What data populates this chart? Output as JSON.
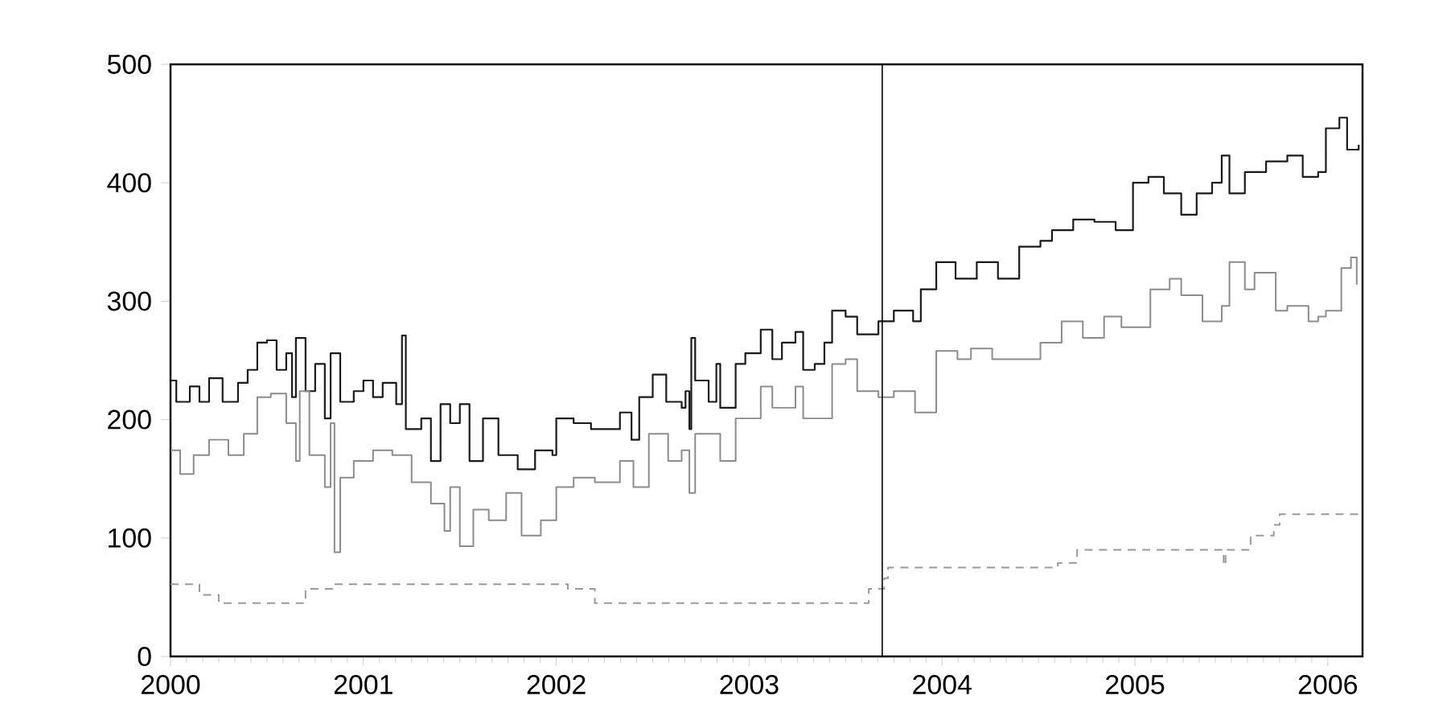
{
  "chart_data": {
    "type": "step",
    "xlim": [
      2000,
      2006.18
    ],
    "xticks": [
      2000,
      2001,
      2002,
      2003,
      2004,
      2005,
      2006
    ],
    "ylim": [
      0,
      500
    ],
    "yticks": [
      0,
      100,
      200,
      300,
      400,
      500
    ],
    "grid": false,
    "marker": "none",
    "ref_lines": [
      {
        "axis": "x",
        "value": 2003.69,
        "color": "#000000"
      }
    ],
    "series": [
      {
        "color": "#1a1a1a",
        "line_style": "solid",
        "x": [
          2000.0,
          2000.03,
          2000.1,
          2000.15,
          2000.2,
          2000.27,
          2000.35,
          2000.4,
          2000.45,
          2000.5,
          2000.55,
          2000.6,
          2000.63,
          2000.65,
          2000.7,
          2000.75,
          2000.8,
          2000.83,
          2000.88,
          2000.95,
          2001.0,
          2001.05,
          2001.1,
          2001.17,
          2001.2,
          2001.22,
          2001.3,
          2001.35,
          2001.4,
          2001.45,
          2001.5,
          2001.55,
          2001.62,
          2001.7,
          2001.78,
          2001.8,
          2001.89,
          2001.98,
          2002.0,
          2002.09,
          2002.18,
          2002.33,
          2002.39,
          2002.43,
          2002.5,
          2002.57,
          2002.65,
          2002.67,
          2002.69,
          2002.7,
          2002.72,
          2002.79,
          2002.83,
          2002.85,
          2002.93,
          2002.98,
          2003.06,
          2003.12,
          2003.17,
          2003.24,
          2003.28,
          2003.34,
          2003.39,
          2003.43,
          2003.5,
          2003.56,
          2003.67,
          2003.75,
          2003.85,
          2003.89,
          2003.97,
          2004.02,
          2004.07,
          2004.18,
          2004.29,
          2004.4,
          2004.51,
          2004.57,
          2004.68,
          2004.79,
          2004.9,
          2004.99,
          2005.07,
          2005.15,
          2005.24,
          2005.32,
          2005.4,
          2005.45,
          2005.49,
          2005.57,
          2005.68,
          2005.79,
          2005.87,
          2005.95,
          2005.99,
          2006.06,
          2006.1,
          2006.16
        ],
        "values": [
          233,
          215,
          228,
          215,
          235,
          215,
          231,
          242,
          265,
          267,
          242,
          256,
          219,
          269,
          224,
          247,
          201,
          256,
          215,
          224,
          233,
          219,
          231,
          213,
          271,
          192,
          201,
          165,
          213,
          197,
          213,
          165,
          201,
          170,
          170,
          158,
          174,
          170,
          201,
          197,
          192,
          206,
          183,
          219,
          238,
          215,
          210,
          224,
          192,
          269,
          233,
          215,
          247,
          210,
          247,
          256,
          276,
          251,
          265,
          274,
          242,
          247,
          265,
          292,
          287,
          272,
          283,
          292,
          283,
          310,
          333,
          333,
          319,
          333,
          319,
          346,
          351,
          360,
          369,
          367,
          360,
          400,
          405,
          391,
          373,
          391,
          400,
          423,
          391,
          409,
          418,
          423,
          405,
          409,
          446,
          455,
          428,
          432
        ]
      },
      {
        "color": "#8c8c8c",
        "line_style": "solid",
        "x": [
          2000.0,
          2000.05,
          2000.12,
          2000.2,
          2000.3,
          2000.38,
          2000.45,
          2000.52,
          2000.6,
          2000.65,
          2000.67,
          2000.72,
          2000.8,
          2000.83,
          2000.85,
          2000.88,
          2000.95,
          2001.05,
          2001.15,
          2001.25,
          2001.35,
          2001.42,
          2001.45,
          2001.5,
          2001.57,
          2001.65,
          2001.74,
          2001.82,
          2001.92,
          2002.0,
          2002.09,
          2002.2,
          2002.33,
          2002.4,
          2002.48,
          2002.58,
          2002.65,
          2002.69,
          2002.72,
          2002.79,
          2002.85,
          2002.93,
          2003.06,
          2003.12,
          2003.24,
          2003.28,
          2003.39,
          2003.43,
          2003.5,
          2003.56,
          2003.67,
          2003.75,
          2003.86,
          2003.97,
          2004.08,
          2004.15,
          2004.26,
          2004.4,
          2004.51,
          2004.62,
          2004.73,
          2004.84,
          2004.93,
          2004.99,
          2005.08,
          2005.18,
          2005.24,
          2005.35,
          2005.45,
          2005.49,
          2005.57,
          2005.62,
          2005.73,
          2005.79,
          2005.9,
          2005.95,
          2005.99,
          2006.07,
          2006.12,
          2006.15
        ],
        "values": [
          174,
          154,
          170,
          183,
          170,
          188,
          219,
          222,
          197,
          165,
          224,
          170,
          143,
          197,
          88,
          151,
          165,
          174,
          170,
          147,
          129,
          106,
          143,
          93,
          124,
          115,
          138,
          102,
          115,
          143,
          151,
          147,
          165,
          143,
          188,
          165,
          174,
          138,
          188,
          188,
          165,
          201,
          228,
          210,
          228,
          201,
          201,
          247,
          251,
          224,
          219,
          224,
          206,
          258,
          251,
          260,
          251,
          251,
          265,
          283,
          269,
          287,
          278,
          278,
          310,
          319,
          305,
          283,
          296,
          333,
          310,
          324,
          292,
          296,
          283,
          287,
          292,
          328,
          337,
          314
        ]
      },
      {
        "color": "#9a9a9a",
        "line_style": "dashed",
        "x": [
          2000.0,
          2000.15,
          2000.25,
          2000.55,
          2000.7,
          2000.85,
          2002.06,
          2002.2,
          2003.57,
          2003.62,
          2003.7,
          2003.72,
          2004.6,
          2004.7,
          2005.45,
          2005.46,
          2005.47,
          2005.6,
          2005.72,
          2005.75,
          2006.16
        ],
        "values": [
          61,
          52,
          45,
          45,
          57,
          61,
          57,
          45,
          45,
          57,
          66,
          75,
          79,
          90,
          90,
          77,
          90,
          102,
          111,
          120,
          120
        ]
      }
    ]
  }
}
